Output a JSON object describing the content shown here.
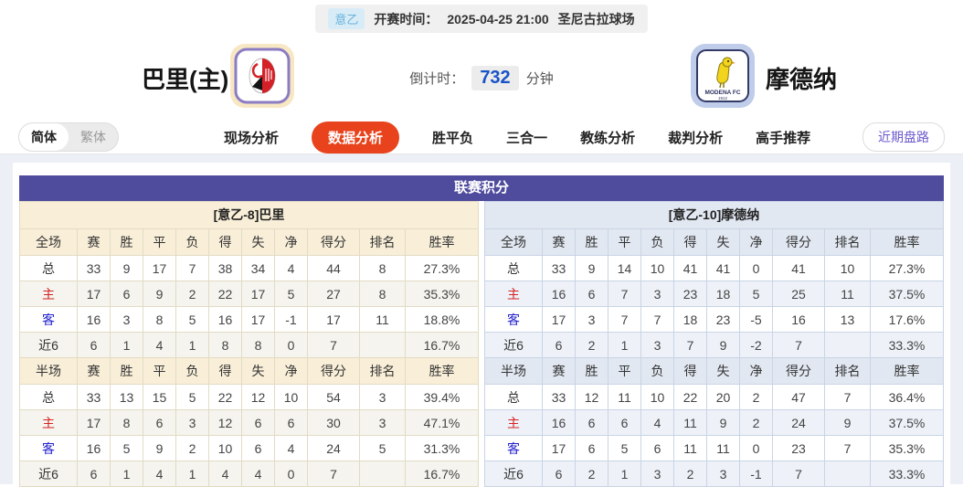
{
  "match_bar": {
    "league": "意乙",
    "kickoff_label": "开赛时间：",
    "kickoff_time": "2025-04-25 21:00",
    "venue": "圣尼古拉球场"
  },
  "header": {
    "home_name": "巴里(主)",
    "away_name": "摩德纳",
    "countdown_label": "倒计时：",
    "countdown_value": "732",
    "countdown_unit": "分钟"
  },
  "nav": {
    "lang": [
      {
        "label": "简体"
      },
      {
        "label": "繁体"
      }
    ],
    "tabs": [
      {
        "label": "现场分析"
      },
      {
        "label": "数据分析"
      },
      {
        "label": "胜平负"
      },
      {
        "label": "三合一"
      },
      {
        "label": "教练分析"
      },
      {
        "label": "裁判分析"
      },
      {
        "label": "高手推荐"
      }
    ],
    "active_tab": "数据分析",
    "recent_button": "近期盘路"
  },
  "standings": {
    "title": "联赛积分",
    "teams": [
      {
        "subtitle": "[意乙-8]巴里",
        "full": {
          "header": [
            "全场",
            "赛",
            "胜",
            "平",
            "负",
            "得",
            "失",
            "净",
            "得分",
            "排名",
            "胜率"
          ],
          "rows": [
            {
              "label": "总",
              "color": "",
              "cells": [
                "33",
                "9",
                "17",
                "7",
                "38",
                "34",
                "4",
                "44",
                "8",
                "27.3%"
              ]
            },
            {
              "label": "主",
              "color": "red",
              "cells": [
                "17",
                "6",
                "9",
                "2",
                "22",
                "17",
                "5",
                "27",
                "8",
                "35.3%"
              ]
            },
            {
              "label": "客",
              "color": "blue",
              "cells": [
                "16",
                "3",
                "8",
                "5",
                "16",
                "17",
                "-1",
                "17",
                "11",
                "18.8%"
              ]
            },
            {
              "label": "近6",
              "color": "",
              "cells": [
                "6",
                "1",
                "4",
                "1",
                "8",
                "8",
                "0",
                "7",
                "",
                "16.7%"
              ]
            }
          ]
        },
        "half": {
          "header": [
            "半场",
            "赛",
            "胜",
            "平",
            "负",
            "得",
            "失",
            "净",
            "得分",
            "排名",
            "胜率"
          ],
          "rows": [
            {
              "label": "总",
              "color": "",
              "cells": [
                "33",
                "13",
                "15",
                "5",
                "22",
                "12",
                "10",
                "54",
                "3",
                "39.4%"
              ]
            },
            {
              "label": "主",
              "color": "red",
              "cells": [
                "17",
                "8",
                "6",
                "3",
                "12",
                "6",
                "6",
                "30",
                "3",
                "47.1%"
              ]
            },
            {
              "label": "客",
              "color": "blue",
              "cells": [
                "16",
                "5",
                "9",
                "2",
                "10",
                "6",
                "4",
                "24",
                "5",
                "31.3%"
              ]
            },
            {
              "label": "近6",
              "color": "",
              "cells": [
                "6",
                "1",
                "4",
                "1",
                "4",
                "4",
                "0",
                "7",
                "",
                "16.7%"
              ]
            }
          ]
        }
      },
      {
        "subtitle": "[意乙-10]摩德纳",
        "full": {
          "header": [
            "全场",
            "赛",
            "胜",
            "平",
            "负",
            "得",
            "失",
            "净",
            "得分",
            "排名",
            "胜率"
          ],
          "rows": [
            {
              "label": "总",
              "color": "",
              "cells": [
                "33",
                "9",
                "14",
                "10",
                "41",
                "41",
                "0",
                "41",
                "10",
                "27.3%"
              ]
            },
            {
              "label": "主",
              "color": "red",
              "cells": [
                "16",
                "6",
                "7",
                "3",
                "23",
                "18",
                "5",
                "25",
                "11",
                "37.5%"
              ]
            },
            {
              "label": "客",
              "color": "blue",
              "cells": [
                "17",
                "3",
                "7",
                "7",
                "18",
                "23",
                "-5",
                "16",
                "13",
                "17.6%"
              ]
            },
            {
              "label": "近6",
              "color": "",
              "cells": [
                "6",
                "2",
                "1",
                "3",
                "7",
                "9",
                "-2",
                "7",
                "",
                "33.3%"
              ]
            }
          ]
        },
        "half": {
          "header": [
            "半场",
            "赛",
            "胜",
            "平",
            "负",
            "得",
            "失",
            "净",
            "得分",
            "排名",
            "胜率"
          ],
          "rows": [
            {
              "label": "总",
              "color": "",
              "cells": [
                "33",
                "12",
                "11",
                "10",
                "22",
                "20",
                "2",
                "47",
                "7",
                "36.4%"
              ]
            },
            {
              "label": "主",
              "color": "red",
              "cells": [
                "16",
                "6",
                "6",
                "4",
                "11",
                "9",
                "2",
                "24",
                "9",
                "37.5%"
              ]
            },
            {
              "label": "客",
              "color": "blue",
              "cells": [
                "17",
                "6",
                "5",
                "6",
                "11",
                "11",
                "0",
                "23",
                "7",
                "35.3%"
              ]
            },
            {
              "label": "近6",
              "color": "",
              "cells": [
                "6",
                "2",
                "1",
                "3",
                "2",
                "3",
                "-1",
                "7",
                "",
                "33.3%"
              ]
            }
          ]
        }
      }
    ]
  },
  "colors": {
    "accent_orange": "#e8431c",
    "purple_header": "#4f4b9d",
    "home_panel": "#f9efd8",
    "home_border": "#e2dbc4",
    "home_stripe": "#f5f4ef",
    "away_panel": "#e2e8f2",
    "away_border": "#c9d4e5",
    "away_stripe": "#eef2f8",
    "countdown_blue": "#1953c8",
    "badge_bg": "#d8ecf8",
    "badge_text": "#68b0da",
    "label_red": "#d42222",
    "label_blue": "#2222cc",
    "recent_purple": "#6a5acd"
  }
}
